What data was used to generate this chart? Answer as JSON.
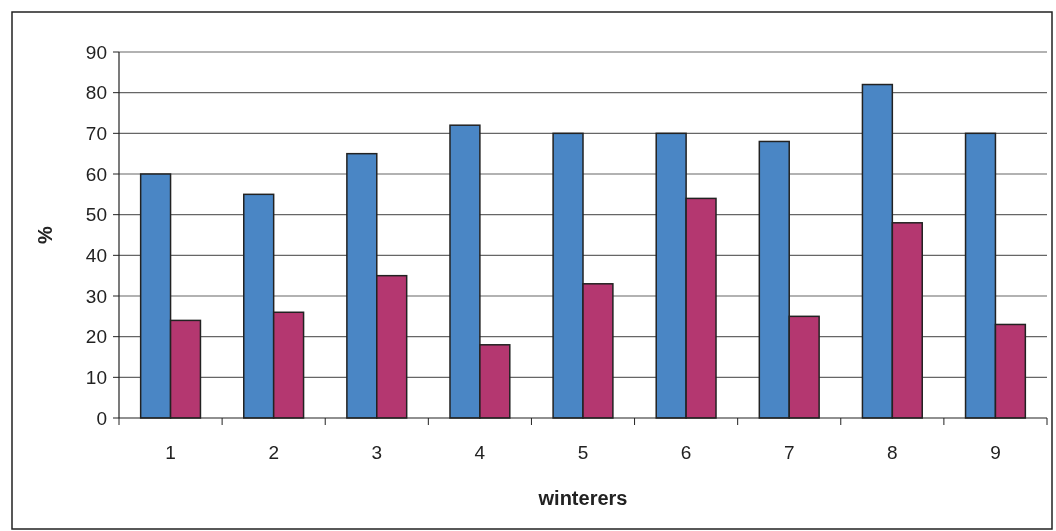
{
  "chart_data": {
    "type": "bar",
    "xlabel": "winterers",
    "ylabel": "%",
    "categories": [
      "1",
      "2",
      "3",
      "4",
      "5",
      "6",
      "7",
      "8",
      "9"
    ],
    "series": [
      {
        "color": "#4a86c5",
        "values": [
          60,
          55,
          65,
          72,
          70,
          70,
          68,
          82,
          70
        ]
      },
      {
        "color": "#b43770",
        "values": [
          24,
          26,
          35,
          18,
          33,
          54,
          25,
          48,
          23
        ]
      }
    ],
    "ylim": [
      0,
      90
    ],
    "yticks": [
      0,
      10,
      20,
      30,
      40,
      50,
      60,
      70,
      80,
      90
    ],
    "grid": "y"
  }
}
